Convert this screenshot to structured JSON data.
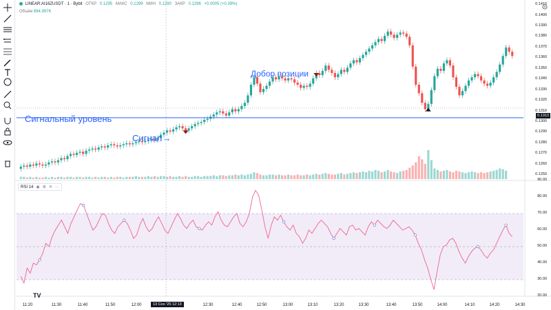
{
  "symbol": {
    "name": "LINEAR:AI16ZUSDT · 1 · Bybit",
    "open_label": "ОТКР",
    "open": "0.1295",
    "high_label": "МАКС",
    "high": "0.1299",
    "low_label": "МИН",
    "low": "0.1290",
    "close_label": "ЗАКР",
    "close": "0.1296",
    "change": "+0.0005 (+0.39%)"
  },
  "volume": {
    "label": "Объём",
    "value": "894.997K"
  },
  "rsi": {
    "label": "RSI 14"
  },
  "annotations": {
    "signal_level": "Сигнальный уровень",
    "signal": "Сигнал→",
    "add_position": "Добор позиции"
  },
  "price_axis": {
    "labels": [
      "0.1410",
      "0.1400",
      "0.1390",
      "0.1380",
      "0.1370",
      "0.1360",
      "0.1350",
      "0.1340",
      "0.1330",
      "0.1320",
      "0.1310",
      "0.1300",
      "0.1290",
      "0.1280",
      "0.1270",
      "0.1260",
      "0.1250"
    ],
    "last_price": "0.1313"
  },
  "rsi_axis": {
    "labels": [
      "90.00",
      "80.00",
      "70.00",
      "60.00",
      "50.00",
      "40.00",
      "30.00",
      "20.00"
    ]
  },
  "time_axis": {
    "labels": [
      "11:20",
      "11:30",
      "11:40",
      "11:50",
      "12:00",
      "12:30",
      "12:40",
      "12:50",
      "13:00",
      "13:10",
      "13:20",
      "13:30",
      "13:40",
      "13:50",
      "14:00",
      "14:10",
      "14:20",
      "14:30"
    ],
    "crosshair": "13 Сен '25   12:13"
  },
  "colors": {
    "up": "#26a69a",
    "down": "#ef5350",
    "accent": "#2962ff",
    "rsi_line": "#f06292",
    "rsi_band": "#ede7f6"
  },
  "icons": [
    "crosshair-icon",
    "trend-line-icon",
    "horizontal-line-icon",
    "channel-icon",
    "fib-icon",
    "brush-icon",
    "text-icon",
    "emoji-icon",
    "ruler-icon",
    "zoom-icon",
    "magnet-icon",
    "lock-icon",
    "eye-icon",
    "trash-icon"
  ],
  "chart_data": [
    {
      "type": "candlestick",
      "title": "",
      "x_range": [
        "11:15",
        "14:22"
      ],
      "ylim": [
        0.1245,
        0.1412
      ],
      "signal_level": 0.1304,
      "closes": [
        0.1258,
        0.1259,
        0.1258,
        0.126,
        0.1259,
        0.1261,
        0.126,
        0.1259,
        0.126,
        0.1262,
        0.1263,
        0.1262,
        0.1264,
        0.1266,
        0.1265,
        0.1268,
        0.127,
        0.1269,
        0.1271,
        0.1272,
        0.127,
        0.1273,
        0.1274,
        0.1275,
        0.1274,
        0.1276,
        0.1277,
        0.1276,
        0.1278,
        0.1279,
        0.1278,
        0.1277,
        0.1278,
        0.1279,
        0.128,
        0.1279,
        0.128,
        0.1281,
        0.1282,
        0.1281,
        0.1282,
        0.1283,
        0.1284,
        0.1283,
        0.1285,
        0.1288,
        0.129,
        0.1292,
        0.1291,
        0.1293,
        0.1295,
        0.1296,
        0.1294,
        0.1292,
        0.1294,
        0.1296,
        0.1298,
        0.1299,
        0.13,
        0.1302,
        0.1303,
        0.1305,
        0.1307,
        0.1309,
        0.131,
        0.1308,
        0.1306,
        0.1309,
        0.1312,
        0.131,
        0.1312,
        0.1315,
        0.1318,
        0.1325,
        0.1335,
        0.1342,
        0.1336,
        0.1328,
        0.1331,
        0.1334,
        0.1338,
        0.1342,
        0.134,
        0.1343,
        0.1341,
        0.1339,
        0.1341,
        0.134,
        0.1337,
        0.1335,
        0.1332,
        0.1334,
        0.1333,
        0.1336,
        0.1341,
        0.1346,
        0.1344,
        0.1348,
        0.1353,
        0.1349,
        0.1346,
        0.1342,
        0.1345,
        0.1349,
        0.1347,
        0.1351,
        0.1355,
        0.1358,
        0.1356,
        0.136,
        0.1363,
        0.1366,
        0.1369,
        0.1372,
        0.1375,
        0.1378,
        0.1376,
        0.1381,
        0.1385,
        0.1382,
        0.1379,
        0.1382,
        0.1384,
        0.1383,
        0.138,
        0.1372,
        0.1352,
        0.1335,
        0.1327,
        0.1318,
        0.1312,
        0.1317,
        0.133,
        0.1343,
        0.135,
        0.1348,
        0.1355,
        0.1358,
        0.1353,
        0.1342,
        0.1333,
        0.1325,
        0.1329,
        0.1334,
        0.1339,
        0.1342,
        0.1345,
        0.1343,
        0.1339,
        0.1336,
        0.1334,
        0.1337,
        0.1342,
        0.1347,
        0.1354,
        0.1362,
        0.137,
        0.1366,
        0.1362
      ],
      "volumes": [
        3,
        3,
        2,
        3,
        2,
        3,
        2,
        2,
        3,
        2,
        3,
        2,
        3,
        3,
        2,
        3,
        3,
        2,
        3,
        3,
        2,
        3,
        3,
        2,
        3,
        2,
        3,
        3,
        2,
        3,
        2,
        3,
        3,
        2,
        3,
        3,
        3,
        4,
        3,
        3,
        3,
        4,
        3,
        4,
        3,
        4,
        4,
        3,
        4,
        3,
        3,
        4,
        3,
        4,
        3,
        3,
        4,
        4,
        3,
        4,
        4,
        4,
        5,
        4,
        5,
        5,
        4,
        5,
        5,
        6,
        5,
        6,
        5,
        6,
        7,
        9,
        8,
        6,
        5,
        5,
        6,
        6,
        5,
        6,
        5,
        5,
        6,
        5,
        5,
        6,
        5,
        5,
        6,
        5,
        6,
        7,
        6,
        7,
        8,
        7,
        6,
        6,
        7,
        8,
        6,
        7,
        8,
        9,
        8,
        9,
        10,
        9,
        11,
        10,
        12,
        11,
        9,
        10,
        12,
        10,
        9,
        8,
        10,
        11,
        12,
        15,
        18,
        22,
        30,
        26,
        20,
        38,
        25,
        14,
        12,
        10,
        11,
        12,
        10,
        9,
        11,
        10,
        9,
        8,
        9,
        10,
        9,
        8,
        9,
        8,
        9,
        10,
        11,
        12,
        14,
        13,
        11
      ]
    },
    {
      "type": "line",
      "title": "RSI 14",
      "ylim": [
        20,
        90
      ],
      "bands": [
        30,
        50,
        70
      ],
      "values": [
        32,
        28,
        37,
        34,
        40,
        39,
        42,
        46,
        52,
        50,
        56,
        60,
        63,
        66,
        62,
        58,
        64,
        68,
        72,
        76,
        75,
        70,
        65,
        60,
        62,
        66,
        70,
        69,
        64,
        60,
        58,
        62,
        64,
        66,
        64,
        60,
        55,
        57,
        63,
        67,
        62,
        59,
        61,
        65,
        68,
        64,
        60,
        58,
        62,
        66,
        70,
        67,
        63,
        61,
        64,
        66,
        62,
        61,
        60,
        63,
        65,
        63,
        68,
        71,
        66,
        63,
        62,
        65,
        68,
        70,
        64,
        62,
        65,
        70,
        80,
        84,
        81,
        72,
        62,
        55,
        63,
        68,
        66,
        69,
        65,
        62,
        60,
        63,
        58,
        56,
        52,
        55,
        60,
        58,
        61,
        64,
        66,
        64,
        62,
        58,
        55,
        58,
        61,
        59,
        57,
        62,
        63,
        60,
        61,
        59,
        57,
        62,
        65,
        63,
        66,
        64,
        62,
        61,
        63,
        66,
        64,
        62,
        60,
        61,
        62,
        60,
        57,
        52,
        48,
        42,
        37,
        30,
        24,
        35,
        45,
        50,
        51,
        54,
        55,
        52,
        47,
        43,
        40,
        44,
        47,
        49,
        50,
        48,
        45,
        43,
        46,
        48,
        52,
        56,
        60,
        63,
        58,
        56
      ]
    }
  ]
}
